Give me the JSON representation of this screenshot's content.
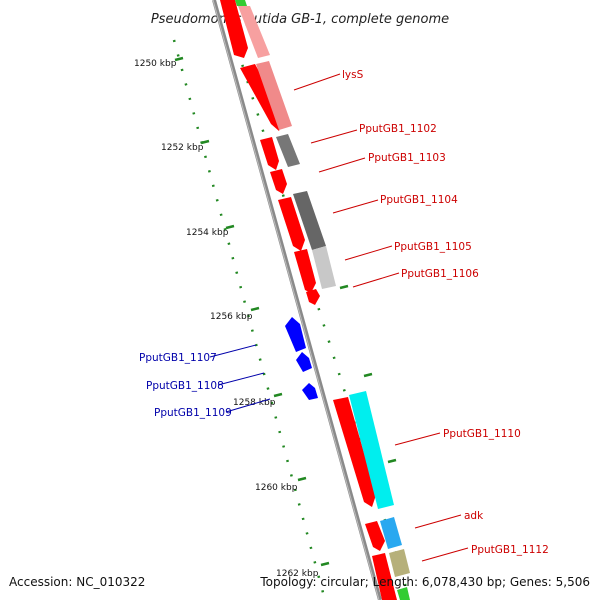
{
  "title": "Pseudomonas putida GB-1, complete genome",
  "footer": {
    "accession": "Accession: NC_010322",
    "summary": "Topology: circular; Length: 6,078,430 bp; Genes: 5,506"
  },
  "colors": {
    "forward_label": "#cc0000",
    "reverse_label": "#0000aa",
    "forward_arrow": "#ff0000",
    "reverse_arrow": "#0000ff",
    "backbone": "#888888",
    "tick": "#228822"
  },
  "ticks": [
    {
      "label": "1250 kbp"
    },
    {
      "label": "1252 kbp"
    },
    {
      "label": "1254 kbp"
    },
    {
      "label": "1256 kbp"
    },
    {
      "label": "1258 kbp"
    },
    {
      "label": "1260 kbp"
    },
    {
      "label": "1262 kbp"
    }
  ],
  "forward_genes": [
    {
      "label": "lysS"
    },
    {
      "label": "PputGB1_1102"
    },
    {
      "label": "PputGB1_1103"
    },
    {
      "label": "PputGB1_1104"
    },
    {
      "label": "PputGB1_1105"
    },
    {
      "label": "PputGB1_1106"
    },
    {
      "label": "PputGB1_1110"
    },
    {
      "label": "adk"
    },
    {
      "label": "PputGB1_1112"
    }
  ],
  "reverse_genes": [
    {
      "label": "PputGB1_1107"
    },
    {
      "label": "PputGB1_1108"
    },
    {
      "label": "PputGB1_1109"
    }
  ]
}
